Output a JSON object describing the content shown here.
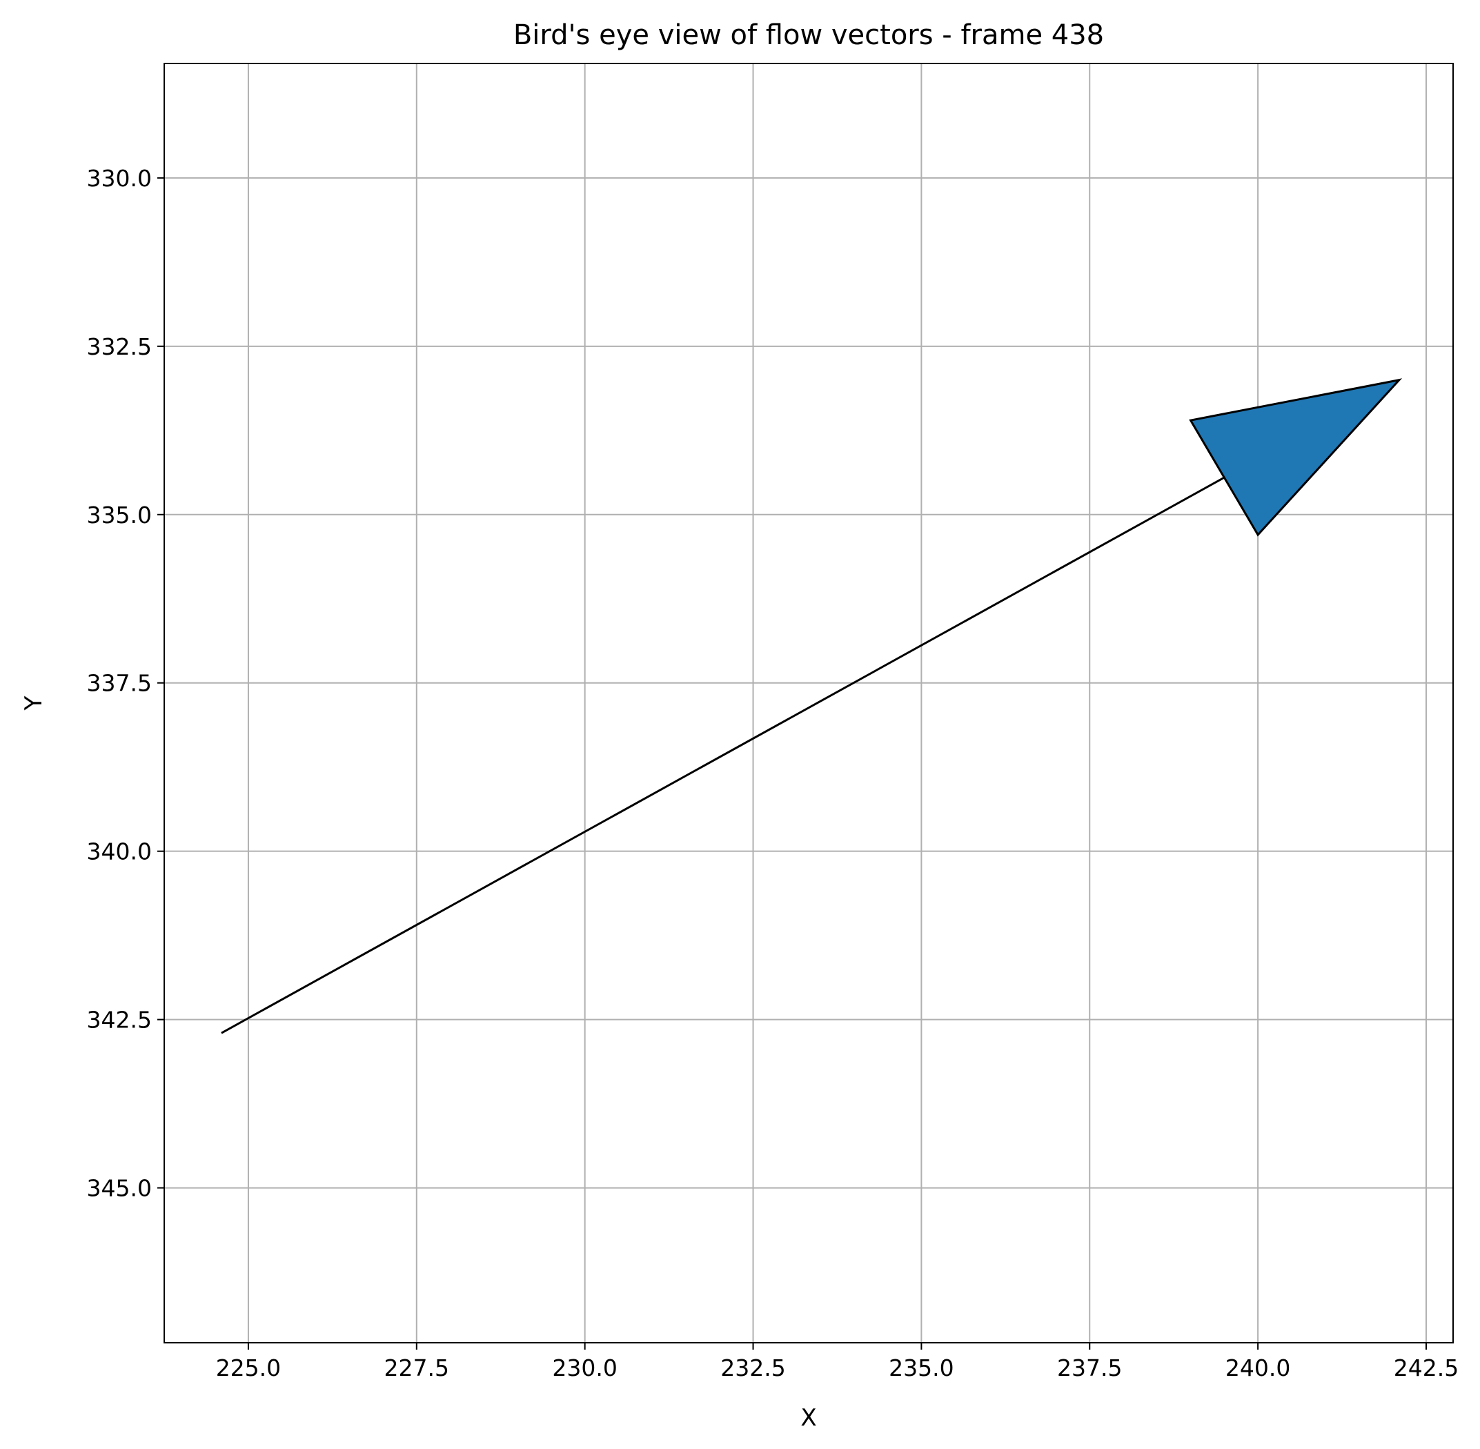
{
  "chart_data": {
    "type": "quiver",
    "title": "Bird's eye view of flow vectors - frame 438",
    "xlabel": "X",
    "ylabel": "Y",
    "xlim": [
      223.75,
      242.9
    ],
    "ylim": [
      328.3,
      347.3
    ],
    "y_inverted": true,
    "grid": true,
    "xticks": [
      "225.0",
      "227.5",
      "230.0",
      "232.5",
      "235.0",
      "237.5",
      "240.0",
      "242.5"
    ],
    "xtick_values": [
      225.0,
      227.5,
      230.0,
      232.5,
      235.0,
      237.5,
      240.0,
      242.5
    ],
    "yticks": [
      "330.0",
      "332.5",
      "335.0",
      "337.5",
      "340.0",
      "342.5",
      "345.0"
    ],
    "ytick_values": [
      330.0,
      332.5,
      335.0,
      337.5,
      340.0,
      342.5,
      345.0
    ],
    "vectors": [
      {
        "x_start": 224.6,
        "y_start": 342.7,
        "x_end": 242.1,
        "y_end": 333.0,
        "head_base_left": [
          239.0,
          333.6
        ],
        "head_base_right": [
          240.0,
          335.3
        ],
        "head_color": "#1f77b4",
        "line_color": "#000000"
      }
    ]
  }
}
